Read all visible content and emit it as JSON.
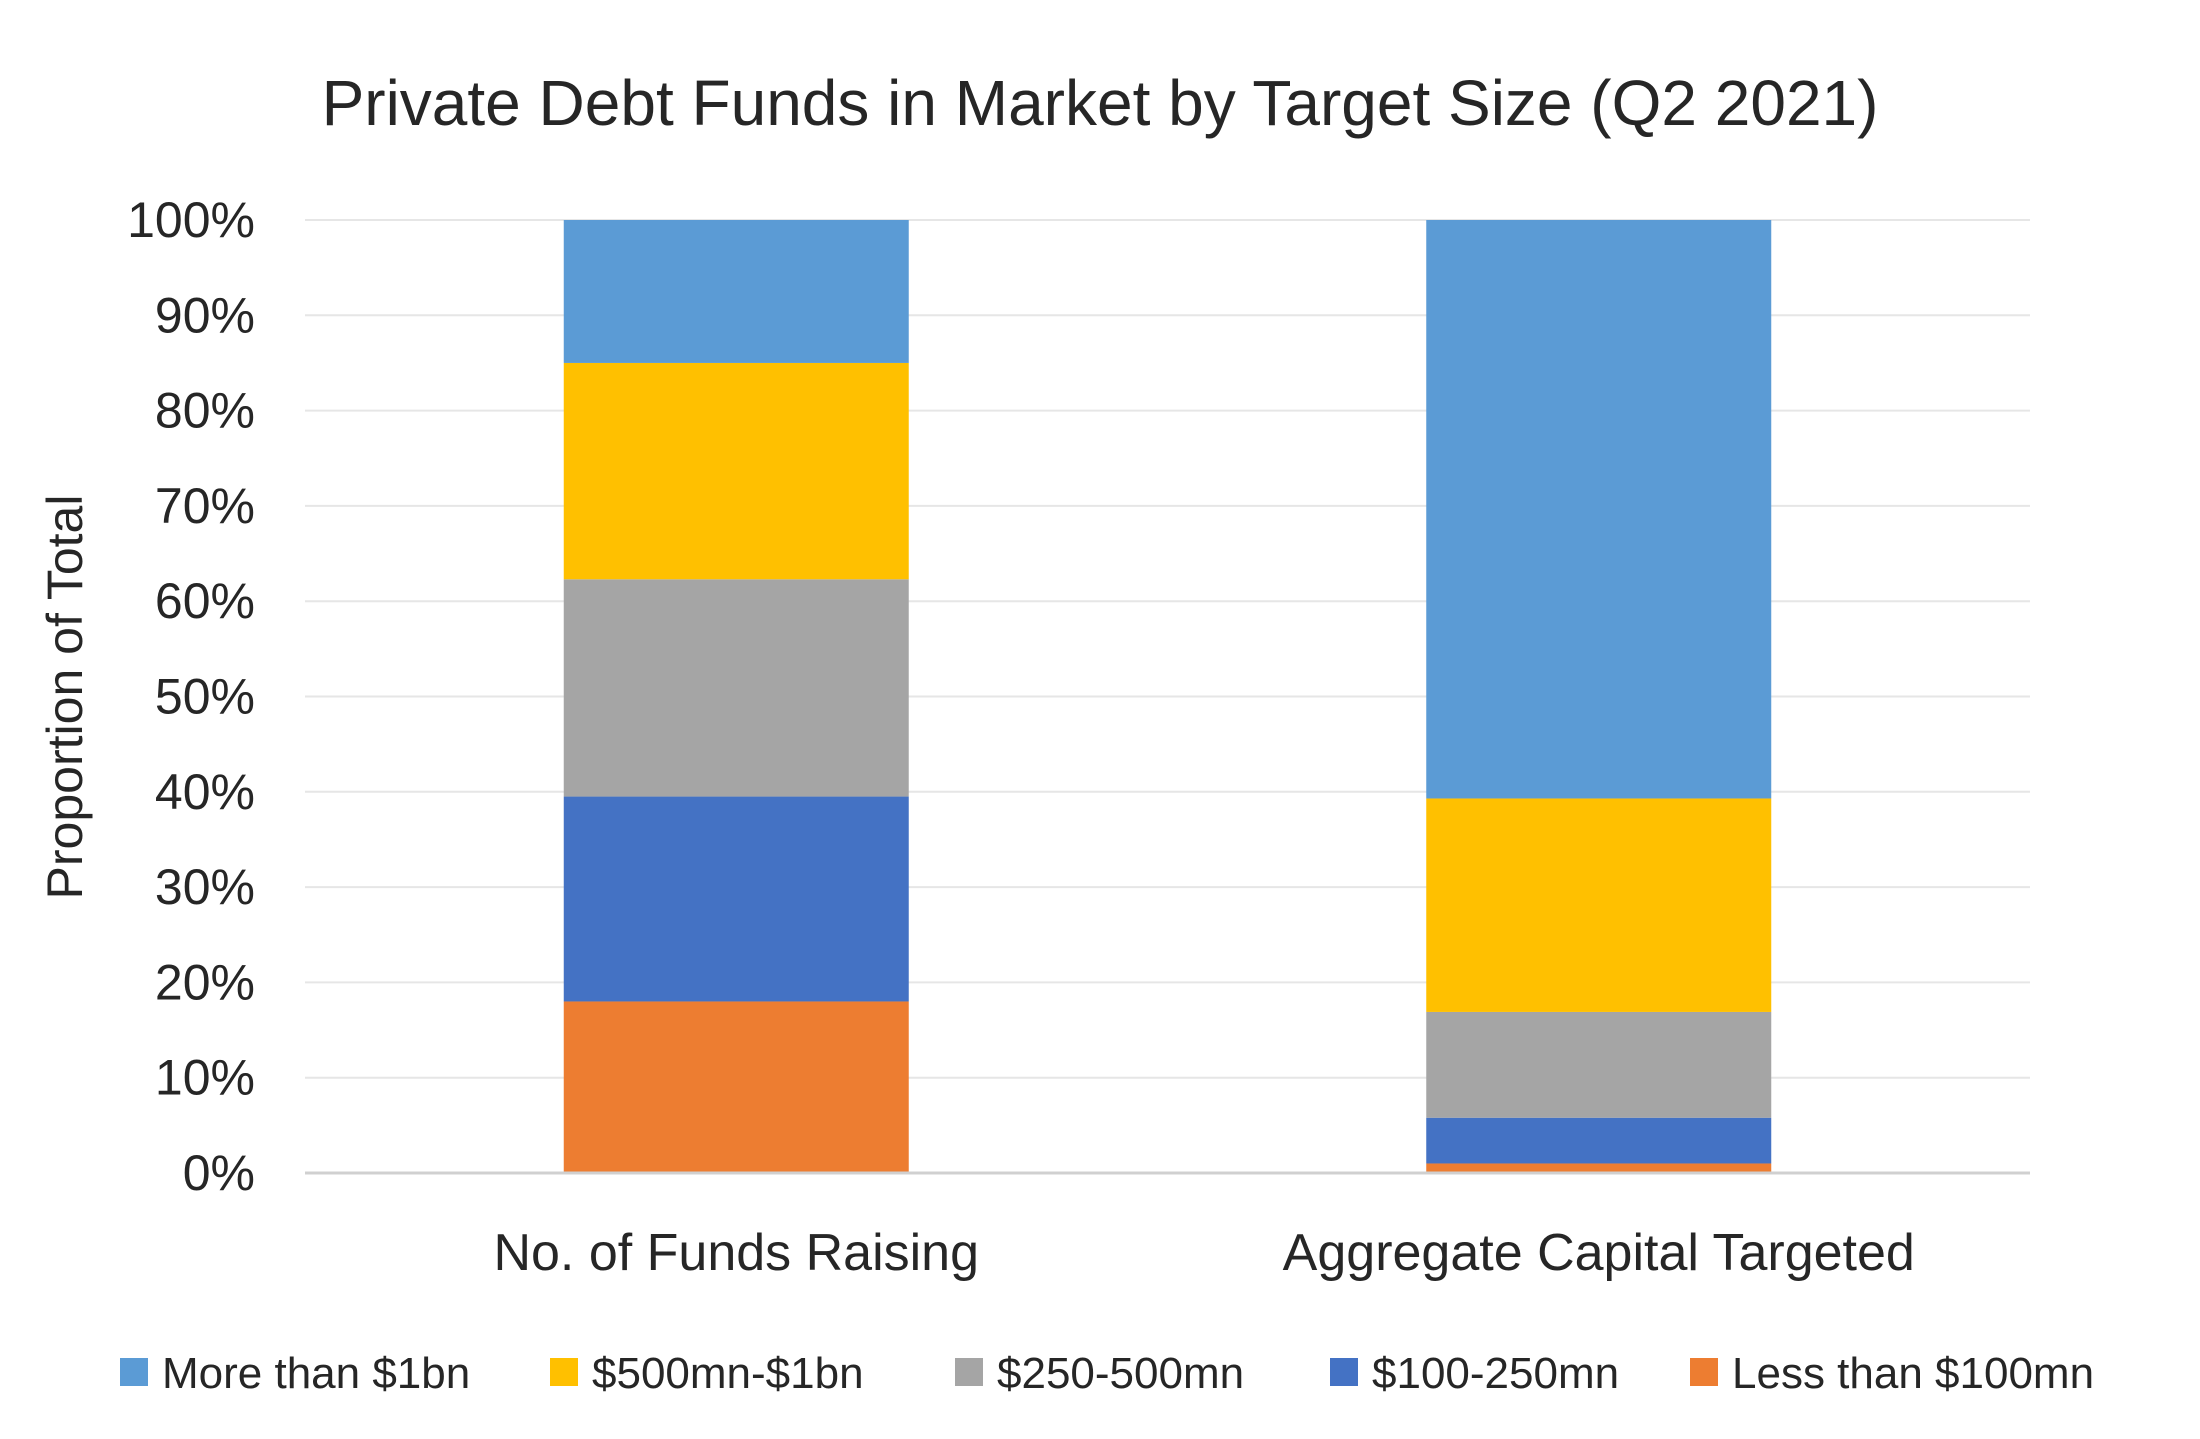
{
  "chart_data": {
    "type": "bar",
    "stacked": true,
    "title": "Private Debt Funds in Market by Target Size (Q2 2021)",
    "ylabel": "Proportion of Total",
    "xlabel": "",
    "ylim": [
      0,
      100
    ],
    "yticks": [
      "0%",
      "10%",
      "20%",
      "30%",
      "40%",
      "50%",
      "60%",
      "70%",
      "80%",
      "90%",
      "100%"
    ],
    "categories": [
      "No. of Funds Raising",
      "Aggregate Capital Targeted"
    ],
    "series": [
      {
        "name": "Less than $100mn",
        "color": "#ED7D31",
        "values": [
          18.0,
          1.0
        ]
      },
      {
        "name": "$100-250mn",
        "color": "#4472C4",
        "values": [
          21.5,
          4.8
        ]
      },
      {
        "name": "$250-500mn",
        "color": "#A5A5A5",
        "values": [
          22.8,
          11.1
        ]
      },
      {
        "name": "$500mn-$1bn",
        "color": "#FFC000",
        "values": [
          22.7,
          22.4
        ]
      },
      {
        "name": "More than $1bn",
        "color": "#5B9BD5",
        "values": [
          15.0,
          60.7
        ]
      }
    ],
    "legend_position": "bottom",
    "grid": true
  }
}
